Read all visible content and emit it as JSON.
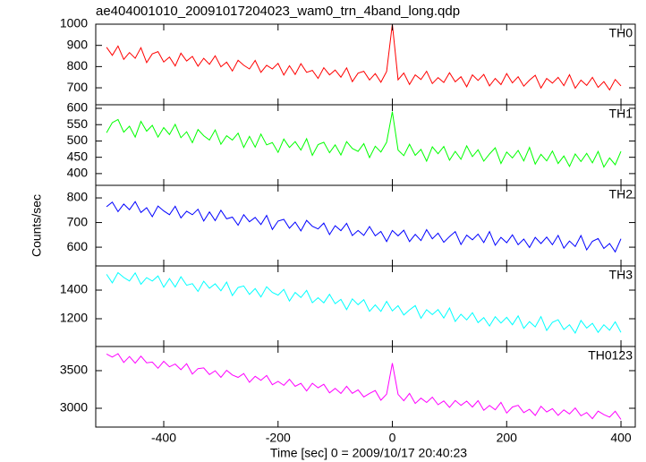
{
  "chart_data": [
    {
      "type": "line",
      "title": "ae404001010_20091017204023_wam0_trn_4band_long.qdp",
      "x": [
        -500,
        -490,
        -480,
        -470,
        -460,
        -450,
        -440,
        -430,
        -420,
        -410,
        -400,
        -390,
        -380,
        -370,
        -360,
        -350,
        -340,
        -330,
        -320,
        -310,
        -300,
        -290,
        -280,
        -270,
        -260,
        -250,
        -240,
        -230,
        -220,
        -210,
        -200,
        -190,
        -180,
        -170,
        -160,
        -150,
        -140,
        -130,
        -120,
        -110,
        -100,
        -90,
        -80,
        -70,
        -60,
        -50,
        -40,
        -30,
        -20,
        -10,
        0,
        10,
        20,
        30,
        40,
        50,
        60,
        70,
        80,
        90,
        100,
        110,
        120,
        130,
        140,
        150,
        160,
        170,
        180,
        190,
        200,
        210,
        220,
        230,
        240,
        250,
        260,
        270,
        280,
        290,
        300,
        310,
        320,
        330,
        340,
        350,
        360,
        370,
        380,
        390,
        400
      ],
      "series": [
        {
          "name": "TH0",
          "color": "#ff0000",
          "values": [
            891,
            853,
            897,
            834,
            866,
            839,
            889,
            819,
            860,
            871,
            822,
            845,
            803,
            863,
            826,
            848,
            802,
            839,
            811,
            851,
            799,
            821,
            779,
            830,
            806,
            789,
            829,
            773,
            806,
            789,
            815,
            760,
            804,
            763,
            814,
            773,
            782,
            744,
            795,
            761,
            784,
            750,
            794,
            729,
            769,
            778,
            737,
            767,
            726,
            777,
            1000,
            738,
            770,
            716,
            761,
            739,
            778,
            720,
            748,
            725,
            771,
            728,
            752,
            705,
            761,
            735,
            763,
            709,
            744,
            715,
            767,
            723,
            752,
            708,
            736,
            759,
            699,
            744,
            722,
            749,
            710,
            762,
            698,
            736,
            711,
            749,
            702,
            729,
            690,
            739,
            709
          ]
        }
      ],
      "xlim": [
        -519,
        425
      ],
      "ylim": [
        620,
        1000
      ],
      "yticks": [
        700,
        800,
        900,
        1000
      ]
    },
    {
      "type": "line",
      "x": [
        -500,
        -490,
        -480,
        -470,
        -460,
        -450,
        -440,
        -430,
        -420,
        -410,
        -400,
        -390,
        -380,
        -370,
        -360,
        -350,
        -340,
        -330,
        -320,
        -310,
        -300,
        -290,
        -280,
        -270,
        -260,
        -250,
        -240,
        -230,
        -220,
        -210,
        -200,
        -190,
        -180,
        -170,
        -160,
        -150,
        -140,
        -130,
        -120,
        -110,
        -100,
        -90,
        -80,
        -70,
        -60,
        -50,
        -40,
        -30,
        -20,
        -10,
        0,
        10,
        20,
        30,
        40,
        50,
        60,
        70,
        80,
        90,
        100,
        110,
        120,
        130,
        140,
        150,
        160,
        170,
        180,
        190,
        200,
        210,
        220,
        230,
        240,
        250,
        260,
        270,
        280,
        290,
        300,
        310,
        320,
        330,
        340,
        350,
        360,
        370,
        380,
        390,
        400
      ],
      "series": [
        {
          "name": "TH1",
          "color": "#00ff00",
          "values": [
            525,
            556,
            566,
            527,
            545,
            512,
            560,
            530,
            548,
            512,
            541,
            520,
            551,
            510,
            528,
            495,
            535,
            516,
            503,
            534,
            490,
            516,
            503,
            524,
            480,
            514,
            481,
            521,
            488,
            495,
            465,
            506,
            480,
            498,
            472,
            507,
            456,
            489,
            496,
            464,
            488,
            457,
            498,
            477,
            468,
            492,
            449,
            484,
            466,
            496,
            590,
            472,
            455,
            490,
            456,
            474,
            438,
            482,
            461,
            483,
            441,
            468,
            444,
            485,
            452,
            473,
            438,
            460,
            479,
            431,
            466,
            448,
            471,
            439,
            480,
            429,
            459,
            439,
            469,
            431,
            454,
            422,
            460,
            437,
            462,
            433,
            468,
            420,
            448,
            427,
            468
          ]
        }
      ],
      "xlim": [
        -519,
        425
      ],
      "ylim": [
        364,
        611
      ],
      "yticks": [
        400,
        450,
        500,
        550,
        600
      ]
    },
    {
      "type": "line",
      "ylabel": "Counts/sec",
      "x": [
        -500,
        -490,
        -480,
        -470,
        -460,
        -450,
        -440,
        -430,
        -420,
        -410,
        -400,
        -390,
        -380,
        -370,
        -360,
        -350,
        -340,
        -330,
        -320,
        -310,
        -300,
        -290,
        -280,
        -270,
        -260,
        -250,
        -240,
        -230,
        -220,
        -210,
        -200,
        -190,
        -180,
        -170,
        -160,
        -150,
        -140,
        -130,
        -120,
        -110,
        -100,
        -90,
        -80,
        -70,
        -60,
        -50,
        -40,
        -30,
        -20,
        -10,
        0,
        10,
        20,
        30,
        40,
        50,
        60,
        70,
        80,
        90,
        100,
        110,
        120,
        130,
        140,
        150,
        160,
        170,
        180,
        190,
        200,
        210,
        220,
        230,
        240,
        250,
        260,
        270,
        280,
        290,
        300,
        310,
        320,
        330,
        340,
        350,
        360,
        370,
        380,
        390,
        400
      ],
      "series": [
        {
          "name": "TH2",
          "color": "#0000ff",
          "values": [
            764,
            783,
            744,
            775,
            752,
            785,
            741,
            760,
            724,
            767,
            747,
            732,
            766,
            719,
            746,
            732,
            754,
            706,
            743,
            708,
            750,
            715,
            722,
            689,
            732,
            703,
            721,
            692,
            729,
            672,
            706,
            713,
            677,
            702,
            666,
            709,
            685,
            674,
            698,
            651,
            687,
            667,
            697,
            647,
            668,
            648,
            684,
            646,
            664,
            623,
            668,
            646,
            669,
            623,
            652,
            627,
            671,
            634,
            657,
            620,
            643,
            663,
            611,
            649,
            630,
            653,
            619,
            663,
            608,
            640,
            618,
            650,
            610,
            633,
            599,
            640,
            615,
            641,
            610,
            648,
            596,
            625,
            603,
            647,
            589,
            624,
            635,
            595,
            615,
            581,
            634
          ]
        }
      ],
      "xlim": [
        -519,
        425
      ],
      "ylim": [
        524,
        851
      ],
      "yticks": [
        600,
        700,
        800
      ]
    },
    {
      "type": "line",
      "x": [
        -500,
        -490,
        -480,
        -470,
        -460,
        -450,
        -440,
        -430,
        -420,
        -410,
        -400,
        -390,
        -380,
        -370,
        -360,
        -350,
        -340,
        -330,
        -320,
        -310,
        -300,
        -290,
        -280,
        -270,
        -260,
        -250,
        -240,
        -230,
        -220,
        -210,
        -200,
        -190,
        -180,
        -170,
        -160,
        -150,
        -140,
        -130,
        -120,
        -110,
        -100,
        -90,
        -80,
        -70,
        -60,
        -50,
        -40,
        -30,
        -20,
        -10,
        0,
        10,
        20,
        30,
        40,
        50,
        60,
        70,
        80,
        90,
        100,
        110,
        120,
        130,
        140,
        150,
        160,
        170,
        180,
        190,
        200,
        210,
        220,
        230,
        240,
        250,
        260,
        270,
        280,
        290,
        300,
        310,
        320,
        330,
        340,
        350,
        360,
        370,
        380,
        390,
        400
      ],
      "series": [
        {
          "name": "TH3",
          "color": "#00ffff",
          "values": [
            1510,
            1451,
            1522,
            1488,
            1464,
            1520,
            1441,
            1487,
            1463,
            1499,
            1420,
            1481,
            1422,
            1493,
            1434,
            1445,
            1391,
            1462,
            1413,
            1444,
            1395,
            1456,
            1362,
            1418,
            1429,
            1370,
            1411,
            1352,
            1423,
            1384,
            1365,
            1405,
            1324,
            1384,
            1348,
            1398,
            1312,
            1347,
            1311,
            1371,
            1305,
            1335,
            1264,
            1339,
            1298,
            1333,
            1252,
            1297,
            1251,
            1321,
            1255,
            1291,
            1226,
            1262,
            1292,
            1203,
            1263,
            1229,
            1264,
            1205,
            1275,
            1181,
            1231,
            1192,
            1242,
            1173,
            1208,
            1149,
            1214,
            1170,
            1210,
            1158,
            1220,
            1133,
            1180,
            1143,
            1215,
            1118,
            1175,
            1193,
            1125,
            1158,
            1100,
            1188,
            1135,
            1168,
            1105,
            1158,
            1120,
            1178,
            1105
          ]
        }
      ],
      "xlim": [
        -519,
        425
      ],
      "ylim": [
        1006,
        1569
      ],
      "yticks": [
        1200,
        1400
      ]
    },
    {
      "type": "line",
      "xlabel": "Time [sec] 0 = 2009/10/17 20:40:23",
      "x": [
        -500,
        -490,
        -480,
        -470,
        -460,
        -450,
        -440,
        -430,
        -420,
        -410,
        -400,
        -390,
        -380,
        -370,
        -360,
        -350,
        -340,
        -330,
        -320,
        -310,
        -300,
        -290,
        -280,
        -270,
        -260,
        -250,
        -240,
        -230,
        -220,
        -210,
        -200,
        -190,
        -180,
        -170,
        -160,
        -150,
        -140,
        -130,
        -120,
        -110,
        -100,
        -90,
        -80,
        -70,
        -60,
        -50,
        -40,
        -30,
        -20,
        -10,
        0,
        10,
        20,
        30,
        40,
        50,
        60,
        70,
        80,
        90,
        100,
        110,
        120,
        130,
        140,
        150,
        160,
        170,
        180,
        190,
        200,
        210,
        220,
        230,
        240,
        250,
        260,
        270,
        280,
        290,
        300,
        310,
        320,
        330,
        340,
        350,
        360,
        370,
        380,
        390,
        400
      ],
      "series": [
        {
          "name": "TH0123",
          "color": "#ff00ff",
          "values": [
            3721,
            3681,
            3726,
            3609,
            3688,
            3600,
            3693,
            3604,
            3614,
            3532,
            3625,
            3551,
            3588,
            3513,
            3593,
            3455,
            3527,
            3537,
            3448,
            3499,
            3411,
            3504,
            3443,
            3411,
            3462,
            3345,
            3425,
            3371,
            3436,
            3313,
            3357,
            3305,
            3386,
            3292,
            3331,
            3230,
            3332,
            3273,
            3319,
            3204,
            3264,
            3198,
            3293,
            3199,
            3245,
            3151,
            3197,
            3236,
            3107,
            3188,
            3600,
            3185,
            3100,
            3198,
            3064,
            3134,
            3077,
            3147,
            3048,
            3097,
            3012,
            3103,
            3039,
            3095,
            3017,
            3101,
            2974,
            3037,
            2980,
            3078,
            2937,
            3016,
            3039,
            2943,
            2987,
            2905,
            3026,
            2951,
            2995,
            2906,
            2978,
            2924,
            3003,
            2900,
            2944,
            2862,
            2962,
            2915,
            2882,
            2961,
            2851
          ]
        }
      ],
      "xlim": [
        -519,
        425
      ],
      "ylim": [
        2750,
        3821
      ],
      "yticks": [
        3000,
        3500
      ],
      "xticks": [
        -400,
        -200,
        0,
        200,
        400
      ]
    }
  ]
}
